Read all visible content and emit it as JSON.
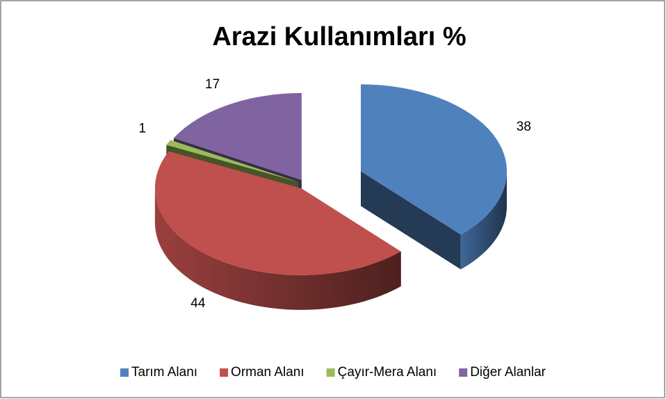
{
  "chart_data": {
    "type": "pie",
    "title": "Arazi Kullanımları %",
    "categories": [
      "Tarım Alanı",
      "Orman Alanı",
      "Çayır-Mera Alanı",
      "Diğer Alanlar"
    ],
    "values": [
      38,
      44,
      1,
      17
    ],
    "colors": [
      "#4f81bd",
      "#c0504d",
      "#9bbb59",
      "#8064a2"
    ],
    "legend": "bottom"
  }
}
